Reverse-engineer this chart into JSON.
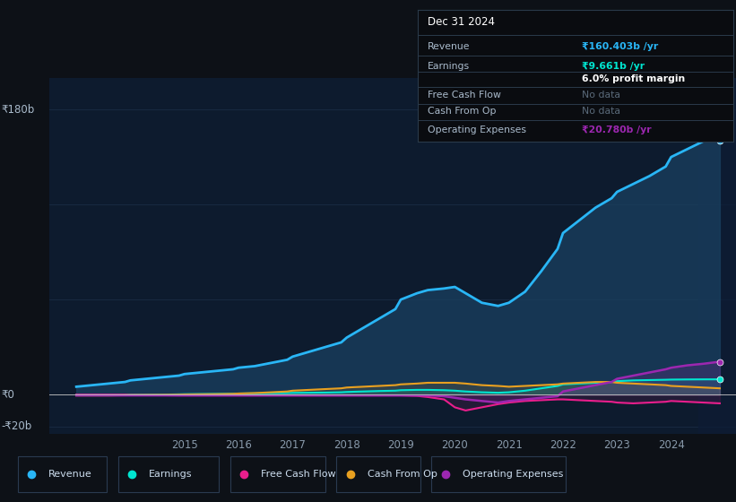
{
  "bg_color": "#0d1117",
  "chart_bg": "#0d1b2e",
  "grid_color": "#253d5a",
  "overlay_color": "#0d1b2e",
  "years": [
    2013.0,
    2013.3,
    2013.6,
    2013.9,
    2014.0,
    2014.3,
    2014.6,
    2014.9,
    2015.0,
    2015.3,
    2015.6,
    2015.9,
    2016.0,
    2016.3,
    2016.6,
    2016.9,
    2017.0,
    2017.3,
    2017.6,
    2017.9,
    2018.0,
    2018.3,
    2018.6,
    2018.9,
    2019.0,
    2019.3,
    2019.5,
    2019.8,
    2020.0,
    2020.2,
    2020.5,
    2020.8,
    2021.0,
    2021.3,
    2021.6,
    2021.9,
    2022.0,
    2022.3,
    2022.6,
    2022.9,
    2023.0,
    2023.3,
    2023.6,
    2023.9,
    2024.0,
    2024.3,
    2024.6,
    2024.9
  ],
  "revenue": [
    5,
    6,
    7,
    8,
    9,
    10,
    11,
    12,
    13,
    14,
    15,
    16,
    17,
    18,
    20,
    22,
    24,
    27,
    30,
    33,
    36,
    42,
    48,
    54,
    60,
    64,
    66,
    67,
    68,
    64,
    58,
    56,
    58,
    65,
    78,
    92,
    102,
    110,
    118,
    124,
    128,
    133,
    138,
    144,
    150,
    155,
    160,
    160.403
  ],
  "earnings": [
    0,
    0,
    0,
    0,
    0,
    0,
    0,
    0.2,
    0.3,
    0.4,
    0.5,
    0.6,
    0.7,
    0.8,
    0.9,
    1.0,
    1.1,
    1.2,
    1.3,
    1.5,
    1.7,
    2.0,
    2.3,
    2.5,
    2.8,
    3.0,
    3.0,
    2.8,
    2.5,
    2.0,
    1.5,
    1.2,
    1.5,
    2.5,
    4.0,
    5.5,
    6.5,
    7.0,
    7.5,
    8.0,
    8.5,
    9.0,
    9.2,
    9.4,
    9.5,
    9.6,
    9.65,
    9.661
  ],
  "free_cash_flow": [
    0,
    0,
    0,
    0,
    -0.2,
    -0.3,
    -0.4,
    -0.5,
    -0.5,
    -0.5,
    -0.5,
    -0.5,
    -0.5,
    -0.5,
    -0.5,
    -0.5,
    -0.5,
    -0.5,
    -0.5,
    -0.5,
    -0.5,
    -0.5,
    -0.5,
    -0.5,
    -0.5,
    -0.8,
    -1.5,
    -3.0,
    -8.0,
    -10.0,
    -8.0,
    -6.0,
    -5.0,
    -4.0,
    -3.5,
    -3.0,
    -3.0,
    -3.5,
    -4.0,
    -4.5,
    -5.0,
    -5.5,
    -5.0,
    -4.5,
    -4.0,
    -4.5,
    -5.0,
    -5.5
  ],
  "cash_from_op": [
    -0.5,
    -0.5,
    -0.5,
    -0.4,
    -0.3,
    -0.2,
    -0.1,
    0.0,
    0.1,
    0.2,
    0.3,
    0.5,
    0.7,
    1.0,
    1.5,
    2.0,
    2.5,
    3.0,
    3.5,
    4.0,
    4.5,
    5.0,
    5.5,
    6.0,
    6.5,
    7.0,
    7.5,
    7.5,
    7.5,
    7.0,
    6.0,
    5.5,
    5.0,
    5.5,
    6.0,
    6.5,
    7.0,
    7.5,
    8.0,
    8.0,
    7.5,
    7.0,
    6.5,
    6.0,
    5.5,
    5.0,
    4.5,
    4.0
  ],
  "operating_expenses": [
    -0.5,
    -0.5,
    -0.5,
    -0.5,
    -0.5,
    -0.5,
    -0.5,
    -0.5,
    -0.5,
    -0.5,
    -0.5,
    -0.5,
    -0.5,
    -0.5,
    -0.5,
    -0.5,
    -0.5,
    -0.5,
    -0.5,
    -0.5,
    -0.5,
    -0.5,
    -0.5,
    -0.5,
    -0.5,
    -0.5,
    -0.5,
    -1.0,
    -2.0,
    -3.0,
    -4.0,
    -5.0,
    -4.0,
    -3.0,
    -2.0,
    -1.0,
    2.0,
    4.0,
    6.0,
    8.0,
    10.0,
    12.0,
    14.0,
    16.0,
    17.0,
    18.5,
    19.5,
    20.78
  ],
  "revenue_color": "#29b6f6",
  "earnings_color": "#00e5d0",
  "fcf_color": "#e91e8c",
  "cashop_color": "#e8a020",
  "opex_color": "#9c27b0",
  "revenue_fill_color": "#1a4060",
  "ylim": [
    -25,
    200
  ],
  "xlim_start": 2012.5,
  "xlim_end": 2025.2,
  "yticks": [
    -20,
    0,
    180
  ],
  "ytick_labels": [
    "-₹20b",
    "₹0",
    "₹180b"
  ],
  "xticks": [
    2015,
    2016,
    2017,
    2018,
    2019,
    2020,
    2021,
    2022,
    2023,
    2024
  ],
  "info_box": {
    "date": "Dec 31 2024",
    "revenue_label": "Revenue",
    "revenue_value": "₹160.403b /yr",
    "earnings_label": "Earnings",
    "earnings_value": "₹9.661b /yr",
    "profit_margin": "6.0% profit margin",
    "fcf_label": "Free Cash Flow",
    "fcf_value": "No data",
    "cashop_label": "Cash From Op",
    "cashop_value": "No data",
    "opex_label": "Operating Expenses",
    "opex_value": "₹20.780b /yr"
  },
  "legend": [
    {
      "label": "Revenue",
      "color": "#29b6f6"
    },
    {
      "label": "Earnings",
      "color": "#00e5d0"
    },
    {
      "label": "Free Cash Flow",
      "color": "#e91e8c"
    },
    {
      "label": "Cash From Op",
      "color": "#e8a020"
    },
    {
      "label": "Operating Expenses",
      "color": "#9c27b0"
    }
  ]
}
